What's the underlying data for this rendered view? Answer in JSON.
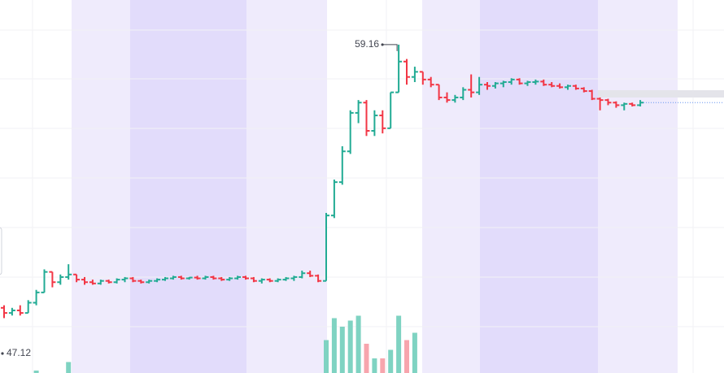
{
  "chart_data": {
    "type": "ohlc",
    "ylim": [
      46.36,
      60.9
    ],
    "up_color": "#22ab94",
    "down_color": "#f23645",
    "volume_up_color": "#7fd3c2",
    "volume_down_color": "#f7a5ad",
    "volume_ylim": [
      0,
      100
    ],
    "low_marker": 47.12,
    "ohlc": [
      [
        48.9,
        49.0,
        48.5,
        48.7
      ],
      [
        48.7,
        48.9,
        48.6,
        48.8
      ],
      [
        48.8,
        49.0,
        48.6,
        48.7
      ],
      [
        48.7,
        49.2,
        48.7,
        49.1
      ],
      [
        49.1,
        49.6,
        49.0,
        49.5
      ],
      [
        49.5,
        50.4,
        49.5,
        50.3
      ],
      [
        50.3,
        50.3,
        49.7,
        49.9
      ],
      [
        49.9,
        50.2,
        49.8,
        50.1
      ],
      [
        50.1,
        50.6,
        50.0,
        50.2
      ],
      [
        50.2,
        50.2,
        49.9,
        50.0
      ],
      [
        50.0,
        50.1,
        49.8,
        49.9
      ],
      [
        49.9,
        50.0,
        49.8,
        49.85
      ],
      [
        49.85,
        50.0,
        49.8,
        49.95
      ],
      [
        49.95,
        50.0,
        49.85,
        49.9
      ],
      [
        49.9,
        50.05,
        49.85,
        50.0
      ],
      [
        50.0,
        50.1,
        49.9,
        50.05
      ],
      [
        50.05,
        50.1,
        49.9,
        49.95
      ],
      [
        49.95,
        50.0,
        49.85,
        49.9
      ],
      [
        49.9,
        50.0,
        49.85,
        49.95
      ],
      [
        49.95,
        50.05,
        49.9,
        50.0
      ],
      [
        50.0,
        50.1,
        49.95,
        50.05
      ],
      [
        50.05,
        50.15,
        50.0,
        50.1
      ],
      [
        50.1,
        50.15,
        50.0,
        50.05
      ],
      [
        50.05,
        50.1,
        50.0,
        50.08
      ],
      [
        50.08,
        50.15,
        50.0,
        50.05
      ],
      [
        50.05,
        50.15,
        50.0,
        50.1
      ],
      [
        50.1,
        50.15,
        50.0,
        50.05
      ],
      [
        50.05,
        50.1,
        49.95,
        50.0
      ],
      [
        50.0,
        50.1,
        49.95,
        50.05
      ],
      [
        50.05,
        50.15,
        50.0,
        50.1
      ],
      [
        50.1,
        50.15,
        50.0,
        50.05
      ],
      [
        50.05,
        50.1,
        49.9,
        49.95
      ],
      [
        49.95,
        50.05,
        49.85,
        50.0
      ],
      [
        50.0,
        50.05,
        49.9,
        49.95
      ],
      [
        49.95,
        50.05,
        49.9,
        50.0
      ],
      [
        50.0,
        50.1,
        49.95,
        50.05
      ],
      [
        50.05,
        50.15,
        49.95,
        50.1
      ],
      [
        50.1,
        50.35,
        50.05,
        50.25
      ],
      [
        50.25,
        50.35,
        50.1,
        50.15
      ],
      [
        50.15,
        50.2,
        49.9,
        49.95
      ],
      [
        49.95,
        52.6,
        49.95,
        52.5
      ],
      [
        52.5,
        53.9,
        52.4,
        53.8
      ],
      [
        53.8,
        55.2,
        53.7,
        55.0
      ],
      [
        55.0,
        56.6,
        54.9,
        56.5
      ],
      [
        56.5,
        57.0,
        56.1,
        56.9
      ],
      [
        56.9,
        57.0,
        55.6,
        55.8
      ],
      [
        55.8,
        56.6,
        55.6,
        56.4
      ],
      [
        56.4,
        56.6,
        55.7,
        55.9
      ],
      [
        55.9,
        57.3,
        55.9,
        57.3
      ],
      [
        57.3,
        59.16,
        57.3,
        58.5
      ],
      [
        58.5,
        58.6,
        57.6,
        57.9
      ],
      [
        57.9,
        58.3,
        57.7,
        58.1
      ],
      [
        58.1,
        58.1,
        57.6,
        57.8
      ],
      [
        57.8,
        57.9,
        57.5,
        57.6
      ],
      [
        57.6,
        57.6,
        57.0,
        57.1
      ],
      [
        57.1,
        57.3,
        56.9,
        57.0
      ],
      [
        57.0,
        57.2,
        56.9,
        57.1
      ],
      [
        57.1,
        57.5,
        57.0,
        57.4
      ],
      [
        57.4,
        58.0,
        57.1,
        57.3
      ],
      [
        57.3,
        57.9,
        57.2,
        57.6
      ],
      [
        57.6,
        57.7,
        57.4,
        57.55
      ],
      [
        57.55,
        57.7,
        57.45,
        57.65
      ],
      [
        57.65,
        57.75,
        57.5,
        57.7
      ],
      [
        57.7,
        57.85,
        57.6,
        57.8
      ],
      [
        57.8,
        57.85,
        57.6,
        57.65
      ],
      [
        57.65,
        57.75,
        57.55,
        57.7
      ],
      [
        57.7,
        57.8,
        57.6,
        57.72
      ],
      [
        57.72,
        57.8,
        57.55,
        57.6
      ],
      [
        57.6,
        57.7,
        57.5,
        57.55
      ],
      [
        57.55,
        57.65,
        57.45,
        57.5
      ],
      [
        57.5,
        57.6,
        57.4,
        57.55
      ],
      [
        57.55,
        57.6,
        57.4,
        57.45
      ],
      [
        57.45,
        57.5,
        57.3,
        57.35
      ],
      [
        57.35,
        57.4,
        57.0,
        57.05
      ],
      [
        57.05,
        57.1,
        56.6,
        57.0
      ],
      [
        57.0,
        57.05,
        56.8,
        56.9
      ],
      [
        56.9,
        56.95,
        56.7,
        56.8
      ],
      [
        56.8,
        56.9,
        56.6,
        56.85
      ],
      [
        56.85,
        56.9,
        56.75,
        56.8
      ],
      [
        56.8,
        57.0,
        56.75,
        56.9
      ]
    ],
    "volume": [
      0,
      0,
      0,
      0,
      2,
      0,
      0,
      0,
      9,
      0,
      0,
      0,
      0,
      0,
      0,
      0,
      0,
      0,
      0,
      0,
      0,
      0,
      0,
      0,
      0,
      0,
      0,
      0,
      0,
      0,
      0,
      0,
      0,
      0,
      0,
      0,
      0,
      0,
      0,
      0,
      27,
      45,
      38,
      43,
      47,
      24,
      12,
      12,
      19,
      47,
      27,
      33,
      0,
      0,
      0,
      0,
      0,
      0,
      0,
      0,
      0,
      0,
      0,
      0,
      0,
      0,
      0,
      0,
      0,
      0,
      0,
      0,
      0,
      0,
      0,
      0,
      0,
      0,
      0,
      0
    ]
  }
}
